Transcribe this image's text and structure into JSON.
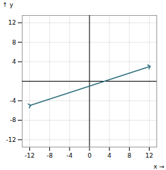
{
  "chart_data": {
    "type": "line",
    "x_label": "x",
    "y_label": "y",
    "x": [
      -12,
      12
    ],
    "values": [
      -5,
      3
    ],
    "color": "#2e6e7e",
    "xlim": [
      -13.5,
      13.5
    ],
    "ylim": [
      -13.5,
      13.5
    ],
    "xticks": [
      -12,
      -8,
      -4,
      0,
      4,
      8,
      12
    ],
    "yticks": [
      -12,
      -8,
      -4,
      4,
      8,
      12
    ],
    "grid": true
  }
}
